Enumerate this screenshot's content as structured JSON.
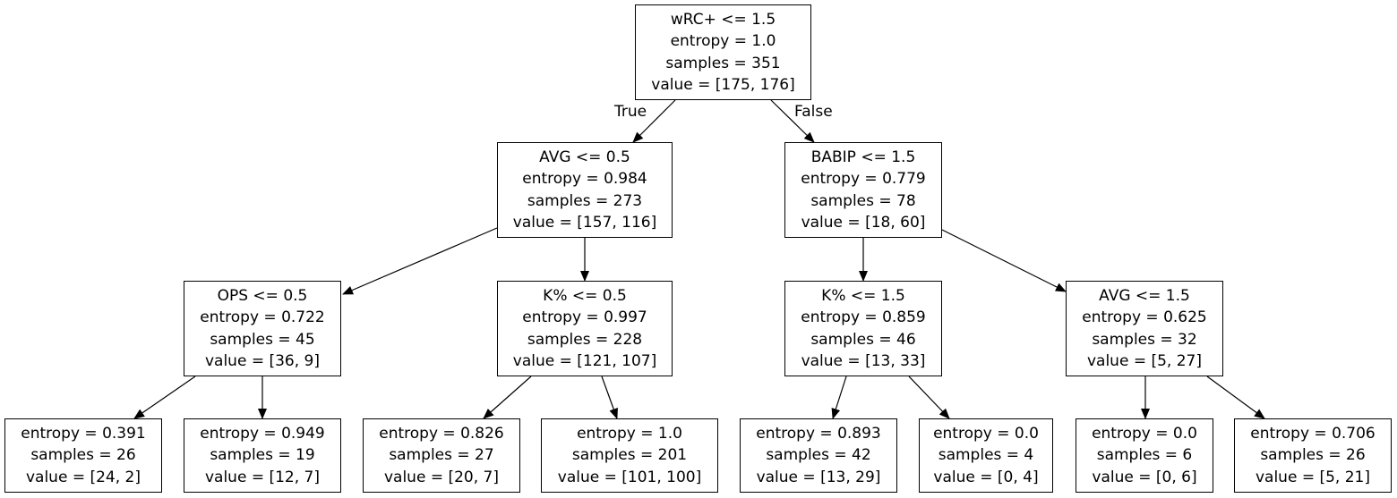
{
  "edge_labels": {
    "true_label": "True",
    "false_label": "False"
  },
  "nodes": [
    {
      "id": "n0",
      "lines": [
        "wRC+ <= 1.5",
        "entropy = 1.0",
        "samples = 351",
        "value = [175, 176]"
      ]
    },
    {
      "id": "n1",
      "lines": [
        "AVG <= 0.5",
        "entropy = 0.984",
        "samples = 273",
        "value = [157, 116]"
      ]
    },
    {
      "id": "n2",
      "lines": [
        "BABIP <= 1.5",
        "entropy = 0.779",
        "samples = 78",
        "value = [18, 60]"
      ]
    },
    {
      "id": "n3",
      "lines": [
        "OPS <= 0.5",
        "entropy = 0.722",
        "samples = 45",
        "value = [36, 9]"
      ]
    },
    {
      "id": "n4",
      "lines": [
        "K% <= 0.5",
        "entropy = 0.997",
        "samples = 228",
        "value = [121, 107]"
      ]
    },
    {
      "id": "n5",
      "lines": [
        "K% <= 1.5",
        "entropy = 0.859",
        "samples = 46",
        "value = [13, 33]"
      ]
    },
    {
      "id": "n6",
      "lines": [
        "AVG <= 1.5",
        "entropy = 0.625",
        "samples = 32",
        "value = [5, 27]"
      ]
    },
    {
      "id": "n7",
      "lines": [
        "entropy = 0.391",
        "samples = 26",
        "value = [24, 2]"
      ]
    },
    {
      "id": "n8",
      "lines": [
        "entropy = 0.949",
        "samples = 19",
        "value = [12, 7]"
      ]
    },
    {
      "id": "n9",
      "lines": [
        "entropy = 0.826",
        "samples = 27",
        "value = [20, 7]"
      ]
    },
    {
      "id": "n10",
      "lines": [
        "entropy = 1.0",
        "samples = 201",
        "value = [101, 100]"
      ]
    },
    {
      "id": "n11",
      "lines": [
        "entropy = 0.893",
        "samples = 42",
        "value = [13, 29]"
      ]
    },
    {
      "id": "n12",
      "lines": [
        "entropy = 0.0",
        "samples = 4",
        "value = [0, 4]"
      ]
    },
    {
      "id": "n13",
      "lines": [
        "entropy = 0.0",
        "samples = 6",
        "value = [0, 6]"
      ]
    },
    {
      "id": "n14",
      "lines": [
        "entropy = 0.706",
        "samples = 26",
        "value = [5, 21]"
      ]
    }
  ],
  "edges": [
    {
      "from": "n0",
      "to": "n1"
    },
    {
      "from": "n0",
      "to": "n2"
    },
    {
      "from": "n1",
      "to": "n3"
    },
    {
      "from": "n1",
      "to": "n4"
    },
    {
      "from": "n2",
      "to": "n5"
    },
    {
      "from": "n2",
      "to": "n6"
    },
    {
      "from": "n3",
      "to": "n7"
    },
    {
      "from": "n3",
      "to": "n8"
    },
    {
      "from": "n4",
      "to": "n9"
    },
    {
      "from": "n4",
      "to": "n10"
    },
    {
      "from": "n5",
      "to": "n11"
    },
    {
      "from": "n5",
      "to": "n12"
    },
    {
      "from": "n6",
      "to": "n13"
    },
    {
      "from": "n6",
      "to": "n14"
    }
  ]
}
